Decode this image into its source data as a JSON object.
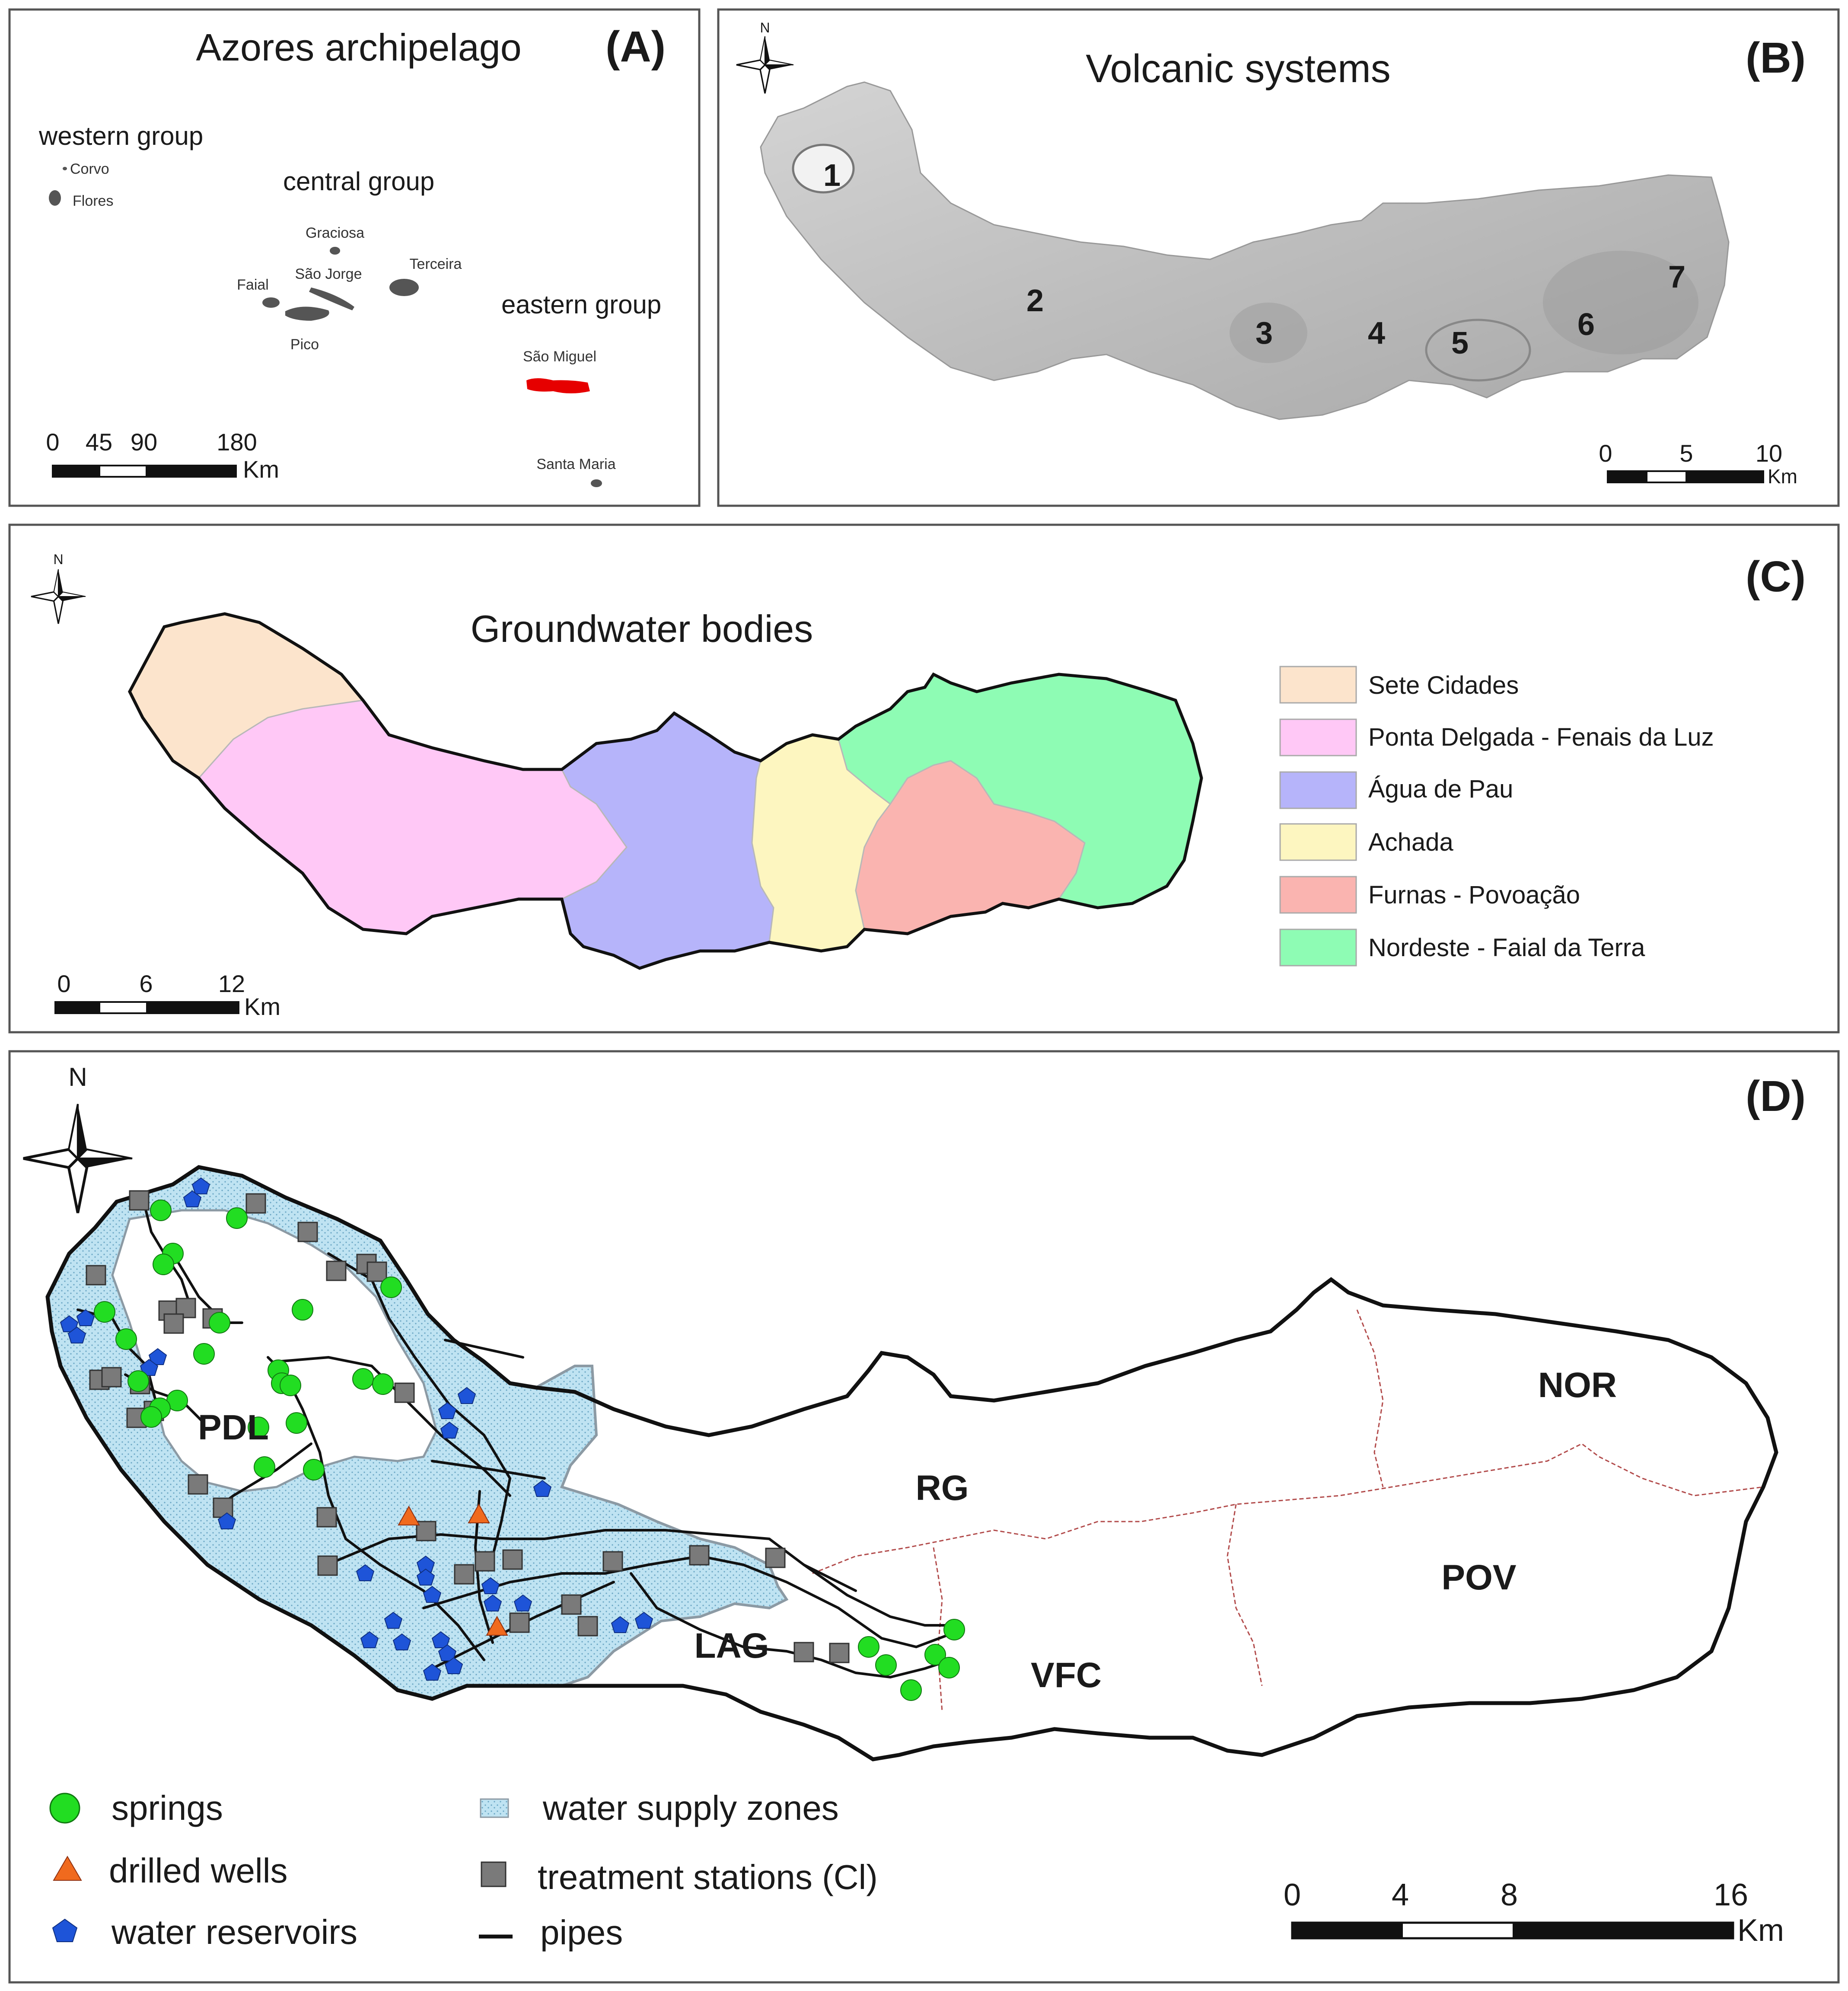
{
  "panel_a": {
    "letter": "(A)",
    "title": "Azores archipelago",
    "groups": {
      "western": "western group",
      "central": "central group",
      "eastern": "eastern group"
    },
    "islands": {
      "corvo": "Corvo",
      "flores": "Flores",
      "graciosa": "Graciosa",
      "sao_jorge": "São Jorge",
      "terceira": "Terceira",
      "faial": "Faial",
      "pico": "Pico",
      "sao_miguel": "São Miguel",
      "santa_maria": "Santa Maria"
    },
    "scale": {
      "ticks": [
        "0",
        "45",
        "90",
        "180"
      ],
      "unit": "Km"
    },
    "highlight_color": "#e60000"
  },
  "panel_b": {
    "letter": "(B)",
    "title": "Volcanic systems",
    "north": "N",
    "systems": [
      "1",
      "2",
      "3",
      "4",
      "5",
      "6",
      "7"
    ],
    "scale": {
      "ticks": [
        "0",
        "5",
        "10"
      ],
      "unit": "Km"
    }
  },
  "panel_c": {
    "letter": "(C)",
    "title": "Groundwater bodies",
    "north": "N",
    "legend": [
      {
        "label": "Sete Cidades",
        "color": "#fce4cc"
      },
      {
        "label": "Ponta Delgada - Fenais da Luz",
        "color": "#ffc8f6"
      },
      {
        "label": "Água de Pau",
        "color": "#b6b4fa"
      },
      {
        "label": "Achada",
        "color": "#fdf6c0"
      },
      {
        "label": "Furnas - Povoação",
        "color": "#fab4b0"
      },
      {
        "label": "Nordeste - Faial da Terra",
        "color": "#8efcb4"
      }
    ],
    "scale": {
      "ticks": [
        "0",
        "6",
        "12"
      ],
      "unit": "Km"
    }
  },
  "panel_d": {
    "letter": "(D)",
    "north": "N",
    "municipalities": [
      "PDL",
      "RG",
      "LAG",
      "VFC",
      "NOR",
      "POV"
    ],
    "legend": {
      "springs": "springs",
      "wells": "drilled wells",
      "reservoirs": "water reservoirs",
      "zones": "water supply zones",
      "treatment": "treatment stations (Cl)",
      "pipes": "pipes"
    },
    "colors": {
      "spring": "#22dd22",
      "well": "#f06a1e",
      "reservoir": "#1e54d8",
      "zone": "#bfe3f2",
      "treatment": "#7a7a7a"
    },
    "scale": {
      "ticks": [
        "0",
        "4",
        "8",
        "16"
      ],
      "unit": "Km"
    }
  }
}
